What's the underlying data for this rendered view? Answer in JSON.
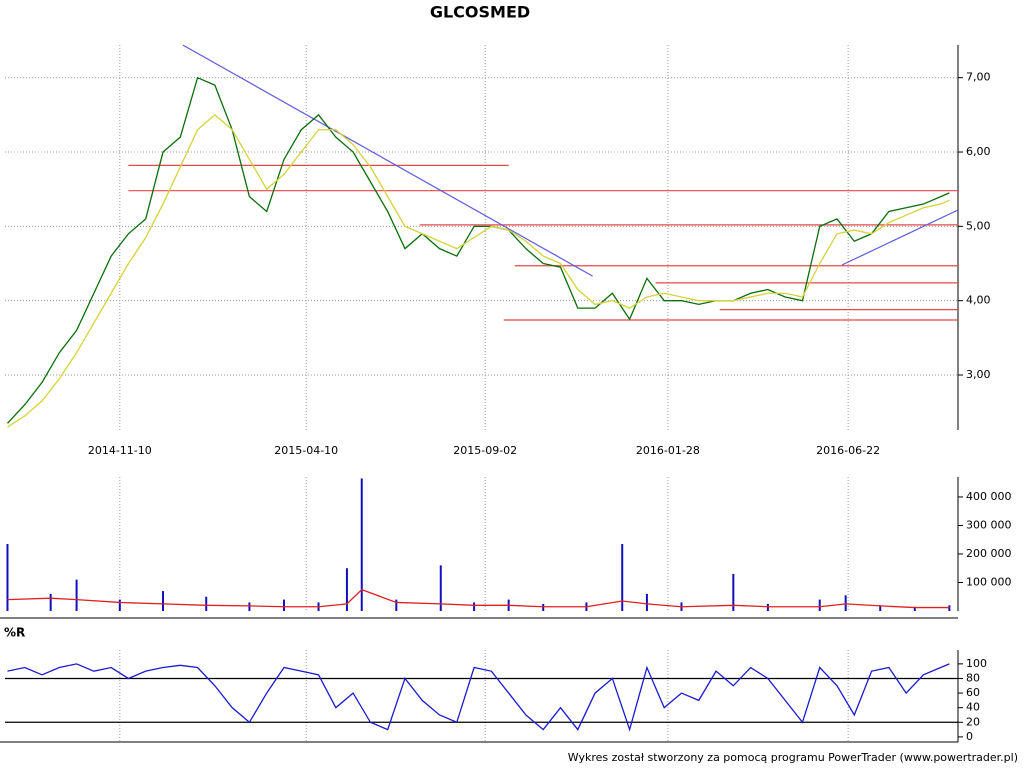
{
  "chart_data": [
    {
      "type": "line",
      "title": "GLCOSMED",
      "xlim": [
        "2014-08-09",
        "2016-09-19"
      ],
      "xticks": [
        "2014-11-10",
        "2015-04-10",
        "2015-09-02",
        "2016-01-28",
        "2016-06-22"
      ],
      "ylim": [
        2.26,
        7.44
      ],
      "yticks": [
        {
          "value": 3,
          "label": "3,00"
        },
        {
          "value": 4,
          "label": "4,00"
        },
        {
          "value": 5,
          "label": "5,00"
        },
        {
          "value": 6,
          "label": "6,00"
        },
        {
          "value": 7,
          "label": "7,00"
        }
      ],
      "grid": true,
      "x": [
        "2014-08-11",
        "2014-08-25",
        "2014-09-08",
        "2014-09-22",
        "2014-10-06",
        "2014-10-20",
        "2014-11-03",
        "2014-11-17",
        "2014-12-01",
        "2014-12-15",
        "2014-12-29",
        "2015-01-12",
        "2015-01-26",
        "2015-02-09",
        "2015-02-23",
        "2015-03-09",
        "2015-03-23",
        "2015-04-06",
        "2015-04-20",
        "2015-05-04",
        "2015-05-18",
        "2015-06-01",
        "2015-06-15",
        "2015-06-29",
        "2015-07-13",
        "2015-07-27",
        "2015-08-10",
        "2015-08-24",
        "2015-09-07",
        "2015-09-21",
        "2015-10-05",
        "2015-10-19",
        "2015-11-02",
        "2015-11-16",
        "2015-11-30",
        "2015-12-14",
        "2015-12-28",
        "2016-01-11",
        "2016-01-25",
        "2016-02-08",
        "2016-02-22",
        "2016-03-07",
        "2016-03-21",
        "2016-04-04",
        "2016-04-18",
        "2016-05-02",
        "2016-05-16",
        "2016-05-30",
        "2016-06-13",
        "2016-06-27",
        "2016-07-11",
        "2016-07-25",
        "2016-08-08",
        "2016-08-22",
        "2016-09-05",
        "2016-09-12"
      ],
      "series": [
        {
          "color": "#0a6e0a",
          "values": [
            2.35,
            2.6,
            2.9,
            3.3,
            3.6,
            4.1,
            4.6,
            4.9,
            5.1,
            6.0,
            6.2,
            7.0,
            6.9,
            6.3,
            5.4,
            5.2,
            5.9,
            6.3,
            6.5,
            6.2,
            6.0,
            5.6,
            5.2,
            4.7,
            4.9,
            4.7,
            4.6,
            5.0,
            5.0,
            4.95,
            4.7,
            4.5,
            4.45,
            3.9,
            3.9,
            4.1,
            3.75,
            4.3,
            4.0,
            4.0,
            3.95,
            4.0,
            4.0,
            4.1,
            4.15,
            4.05,
            4.0,
            5.0,
            5.1,
            4.8,
            4.9,
            5.2,
            5.25,
            5.3,
            5.4,
            5.45
          ]
        },
        {
          "color": "#d6d23a",
          "values": [
            2.3,
            2.45,
            2.65,
            2.95,
            3.3,
            3.7,
            4.1,
            4.5,
            4.85,
            5.3,
            5.8,
            6.3,
            6.5,
            6.3,
            5.9,
            5.5,
            5.7,
            6.0,
            6.3,
            6.3,
            6.1,
            5.8,
            5.4,
            5.0,
            4.9,
            4.8,
            4.7,
            4.85,
            5.0,
            4.95,
            4.8,
            4.6,
            4.5,
            4.15,
            3.95,
            4.0,
            3.9,
            4.05,
            4.1,
            4.05,
            4.0,
            4.0,
            4.0,
            4.05,
            4.1,
            4.1,
            4.05,
            4.5,
            4.9,
            4.95,
            4.9,
            5.05,
            5.15,
            5.25,
            5.3,
            5.35
          ]
        }
      ],
      "levels": [
        {
          "value": 5.82,
          "start": "2014-11-17",
          "end": "2015-09-21"
        },
        {
          "value": 5.48,
          "start": "2014-11-17",
          "end": "2016-09-19"
        },
        {
          "value": 5.02,
          "start": "2015-07-11",
          "end": "2016-09-19"
        },
        {
          "value": 4.47,
          "start": "2015-09-26",
          "end": "2016-09-19"
        },
        {
          "value": 4.24,
          "start": "2016-01-18",
          "end": "2016-09-19"
        },
        {
          "value": 3.88,
          "start": "2016-03-10",
          "end": "2016-09-19"
        },
        {
          "value": 3.74,
          "start": "2015-09-17",
          "end": "2016-09-19"
        }
      ],
      "level_color": "#e8484a",
      "trendlines": [
        {
          "x": [
            "2014-12-31",
            "2015-11-28"
          ],
          "values": [
            7.44,
            4.33
          ]
        },
        {
          "x": [
            "2016-06-17",
            "2016-09-19"
          ],
          "values": [
            4.48,
            5.22
          ]
        }
      ],
      "trend_color": "#5a5ae0"
    },
    {
      "type": "bar",
      "xlim": [
        "2014-08-09",
        "2016-09-19"
      ],
      "ylim": [
        0,
        470000
      ],
      "yticks": [
        {
          "value": 100000,
          "label": "100 000"
        },
        {
          "value": 200000,
          "label": "200 000"
        },
        {
          "value": 300000,
          "label": "300 000"
        },
        {
          "value": 400000,
          "label": "400 000"
        }
      ],
      "x": [
        "2014-08-11",
        "2014-09-15",
        "2014-10-06",
        "2014-11-10",
        "2014-12-15",
        "2015-01-19",
        "2015-02-23",
        "2015-03-23",
        "2015-04-20",
        "2015-05-13",
        "2015-05-25",
        "2015-06-22",
        "2015-07-28",
        "2015-08-24",
        "2015-09-21",
        "2015-10-19",
        "2015-11-23",
        "2015-12-22",
        "2016-01-11",
        "2016-02-08",
        "2016-03-21",
        "2016-04-18",
        "2016-05-30",
        "2016-06-20",
        "2016-07-18",
        "2016-08-15",
        "2016-09-12"
      ],
      "series": [
        {
          "color": "#1010c0",
          "values": [
            235000,
            60000,
            110000,
            40000,
            70000,
            50000,
            30000,
            40000,
            30000,
            150000,
            465000,
            40000,
            160000,
            30000,
            40000,
            25000,
            30000,
            235000,
            60000,
            30000,
            130000,
            25000,
            40000,
            55000,
            20000,
            15000,
            20000
          ]
        },
        {
          "color": "#e02020",
          "values": [
            40000,
            45000,
            40000,
            30000,
            25000,
            20000,
            18000,
            15000,
            15000,
            25000,
            75000,
            30000,
            25000,
            20000,
            20000,
            15000,
            15000,
            35000,
            25000,
            15000,
            20000,
            15000,
            15000,
            25000,
            18000,
            12000,
            12000
          ]
        }
      ]
    },
    {
      "type": "line",
      "title": "%R",
      "xlim": [
        "2014-08-09",
        "2016-09-19"
      ],
      "ylim": [
        -7,
        119
      ],
      "yticks": [
        0,
        20,
        40,
        60,
        80,
        100
      ],
      "levels": [
        {
          "value": 20
        },
        {
          "value": 80
        }
      ],
      "level_color": "#000000",
      "x": [
        "2014-08-11",
        "2014-08-25",
        "2014-09-08",
        "2014-09-22",
        "2014-10-06",
        "2014-10-20",
        "2014-11-03",
        "2014-11-17",
        "2014-12-01",
        "2014-12-15",
        "2014-12-29",
        "2015-01-12",
        "2015-01-26",
        "2015-02-09",
        "2015-02-23",
        "2015-03-09",
        "2015-03-23",
        "2015-04-06",
        "2015-04-20",
        "2015-05-04",
        "2015-05-18",
        "2015-06-01",
        "2015-06-15",
        "2015-06-29",
        "2015-07-13",
        "2015-07-27",
        "2015-08-10",
        "2015-08-24",
        "2015-09-07",
        "2015-09-21",
        "2015-10-05",
        "2015-10-19",
        "2015-11-02",
        "2015-11-16",
        "2015-11-30",
        "2015-12-14",
        "2015-12-28",
        "2016-01-11",
        "2016-01-25",
        "2016-02-08",
        "2016-02-22",
        "2016-03-07",
        "2016-03-21",
        "2016-04-04",
        "2016-04-18",
        "2016-05-02",
        "2016-05-16",
        "2016-05-30",
        "2016-06-13",
        "2016-06-27",
        "2016-07-11",
        "2016-07-25",
        "2016-08-08",
        "2016-08-22",
        "2016-09-05",
        "2016-09-12"
      ],
      "series": [
        {
          "color": "#1a1ad0",
          "values": [
            90,
            95,
            85,
            95,
            100,
            90,
            95,
            80,
            90,
            95,
            98,
            95,
            70,
            40,
            20,
            60,
            95,
            90,
            85,
            40,
            60,
            20,
            10,
            80,
            50,
            30,
            20,
            95,
            90,
            60,
            30,
            10,
            40,
            10,
            60,
            80,
            10,
            95,
            40,
            60,
            50,
            90,
            70,
            95,
            80,
            50,
            20,
            95,
            70,
            30,
            90,
            95,
            60,
            85,
            95,
            100
          ]
        }
      ]
    }
  ],
  "footer": "Wykres został stworzony za pomocą programu PowerTrader (www.powertrader.pl)"
}
